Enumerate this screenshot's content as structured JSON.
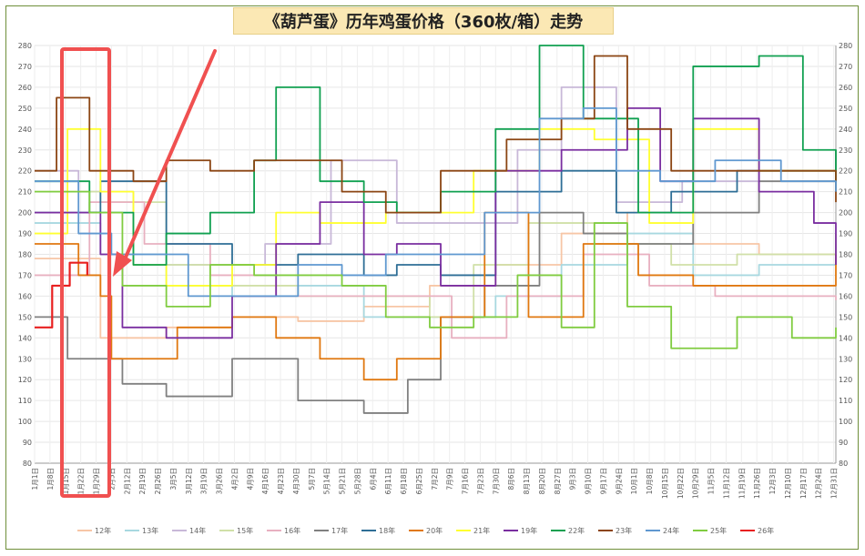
{
  "chart_data": {
    "type": "line",
    "title": "《葫芦蛋》历年鸡蛋价格（360枚/箱）走势",
    "ylim": [
      80,
      280
    ],
    "y_ticks": [
      80,
      90,
      100,
      110,
      120,
      130,
      140,
      150,
      160,
      170,
      180,
      190,
      200,
      210,
      220,
      230,
      240,
      250,
      260,
      270,
      280
    ],
    "x_ticks": [
      "1月1日",
      "1月8日",
      "1月15日",
      "1月22日",
      "1月29日",
      "2月5日",
      "2月12日",
      "2月19日",
      "2月26日",
      "3月5日",
      "3月12日",
      "3月19日",
      "3月26日",
      "4月2日",
      "4月9日",
      "4月16日",
      "4月23日",
      "4月30日",
      "5月7日",
      "5月14日",
      "5月21日",
      "5月28日",
      "6月4日",
      "6月11日",
      "6月18日",
      "6月25日",
      "7月2日",
      "7月9日",
      "7月16日",
      "7月23日",
      "7月30日",
      "8月6日",
      "8月13日",
      "8月20日",
      "8月27日",
      "9月3日",
      "9月10日",
      "9月17日",
      "9月24日",
      "10月1日",
      "10月8日",
      "10月15日",
      "10月22日",
      "10月29日",
      "11月5日",
      "11月12日",
      "11月19日",
      "11月26日",
      "12月3日",
      "12月10日",
      "12月17日",
      "12月24日",
      "12月31日"
    ],
    "legend_position": "bottom",
    "grid": true,
    "series": [
      {
        "name": "12年",
        "color": "#f7c6a6",
        "days": [
          0,
          30,
          60,
          90,
          120,
          150,
          180,
          210,
          240,
          270,
          300,
          330,
          365
        ],
        "values": [
          178,
          140,
          145,
          150,
          148,
          155,
          165,
          175,
          190,
          200,
          185,
          180,
          185
        ]
      },
      {
        "name": "13年",
        "color": "#a8d8e0",
        "days": [
          0,
          30,
          60,
          90,
          120,
          150,
          180,
          210,
          240,
          270,
          300,
          330,
          365
        ],
        "values": [
          195,
          180,
          165,
          160,
          165,
          150,
          150,
          160,
          175,
          190,
          170,
          175,
          180
        ]
      },
      {
        "name": "14年",
        "color": "#c8b8d8",
        "days": [
          0,
          20,
          45,
          75,
          105,
          135,
          165,
          195,
          220,
          240,
          265,
          295,
          330,
          365
        ],
        "values": [
          220,
          210,
          175,
          175,
          185,
          225,
          195,
          195,
          230,
          260,
          205,
          215,
          220,
          210
        ]
      },
      {
        "name": "15年",
        "color": "#d0e0a8",
        "days": [
          0,
          30,
          60,
          90,
          120,
          150,
          180,
          200,
          225,
          255,
          290,
          320,
          365
        ],
        "values": [
          210,
          205,
          175,
          165,
          160,
          160,
          150,
          175,
          195,
          185,
          175,
          180,
          190
        ]
      },
      {
        "name": "16年",
        "color": "#e8b0c0",
        "days": [
          0,
          25,
          50,
          80,
          110,
          140,
          165,
          190,
          215,
          250,
          280,
          310,
          340,
          365
        ],
        "values": [
          170,
          205,
          185,
          170,
          160,
          160,
          160,
          140,
          160,
          180,
          165,
          160,
          160,
          158
        ]
      },
      {
        "name": "17年",
        "color": "#808080",
        "days": [
          0,
          15,
          25,
          32,
          40,
          60,
          90,
          120,
          150,
          170,
          185,
          205,
          230,
          250,
          270,
          300,
          330,
          365
        ],
        "values": [
          150,
          130,
          130,
          130,
          118,
          112,
          130,
          110,
          104,
          120,
          150,
          165,
          200,
          190,
          185,
          200,
          215,
          230
        ]
      },
      {
        "name": "18年",
        "color": "#2e6e96",
        "days": [
          0,
          30,
          60,
          90,
          120,
          150,
          165,
          185,
          210,
          240,
          265,
          290,
          320,
          365
        ],
        "values": [
          200,
          215,
          185,
          175,
          180,
          170,
          175,
          170,
          210,
          220,
          200,
          210,
          220,
          215
        ]
      },
      {
        "name": "20年",
        "color": "#e07810",
        "days": [
          0,
          20,
          30,
          35,
          45,
          65,
          90,
          110,
          130,
          150,
          165,
          185,
          205,
          225,
          250,
          275,
          300,
          330,
          365
        ],
        "values": [
          185,
          170,
          160,
          130,
          130,
          145,
          150,
          140,
          130,
          120,
          130,
          150,
          200,
          150,
          185,
          170,
          165,
          165,
          180
        ]
      },
      {
        "name": "21年",
        "color": "#ffff30",
        "days": [
          0,
          15,
          30,
          45,
          60,
          90,
          110,
          130,
          160,
          180,
          200,
          230,
          255,
          280,
          300,
          330,
          365
        ],
        "values": [
          190,
          240,
          210,
          175,
          165,
          175,
          200,
          195,
          200,
          200,
          220,
          240,
          235,
          195,
          240,
          220,
          220
        ]
      },
      {
        "name": "19年",
        "color": "#7a2ea0",
        "days": [
          0,
          15,
          30,
          40,
          60,
          90,
          110,
          130,
          150,
          165,
          185,
          210,
          240,
          270,
          285,
          300,
          330,
          355,
          365
        ],
        "values": [
          200,
          200,
          180,
          145,
          140,
          160,
          185,
          205,
          180,
          185,
          165,
          220,
          230,
          250,
          215,
          245,
          210,
          195,
          175
        ]
      },
      {
        "name": "22年",
        "color": "#10a050",
        "days": [
          0,
          25,
          45,
          60,
          80,
          100,
          110,
          130,
          150,
          165,
          185,
          210,
          230,
          250,
          275,
          300,
          330,
          350,
          365
        ],
        "values": [
          215,
          200,
          175,
          190,
          200,
          225,
          260,
          215,
          205,
          200,
          210,
          240,
          280,
          245,
          200,
          270,
          275,
          230,
          210
        ]
      },
      {
        "name": "23年",
        "color": "#8b4513",
        "days": [
          0,
          10,
          25,
          45,
          60,
          80,
          100,
          120,
          140,
          160,
          185,
          215,
          240,
          255,
          270,
          290,
          310,
          340,
          365
        ],
        "values": [
          220,
          255,
          220,
          215,
          225,
          220,
          225,
          225,
          210,
          200,
          220,
          235,
          245,
          275,
          240,
          220,
          220,
          220,
          205
        ]
      },
      {
        "name": "24年",
        "color": "#5f98d0",
        "days": [
          0,
          20,
          35,
          50,
          70,
          100,
          120,
          140,
          160,
          185,
          205,
          230,
          250,
          265,
          285,
          310,
          340,
          365
        ],
        "values": [
          215,
          190,
          180,
          180,
          160,
          160,
          175,
          170,
          180,
          180,
          200,
          245,
          250,
          220,
          215,
          225,
          215,
          210
        ]
      },
      {
        "name": "25年",
        "color": "#80cc40",
        "days": [
          0,
          25,
          40,
          60,
          80,
          100,
          120,
          140,
          160,
          180,
          200,
          220,
          240,
          255,
          270,
          290,
          320,
          345,
          365
        ],
        "values": [
          210,
          200,
          165,
          155,
          175,
          170,
          170,
          165,
          150,
          145,
          150,
          170,
          145,
          195,
          155,
          135,
          150,
          140,
          145
        ]
      },
      {
        "name": "26年",
        "color": "#e82020",
        "days": [
          0,
          8,
          16,
          24
        ],
        "values": [
          145,
          165,
          176,
          170
        ]
      }
    ]
  }
}
